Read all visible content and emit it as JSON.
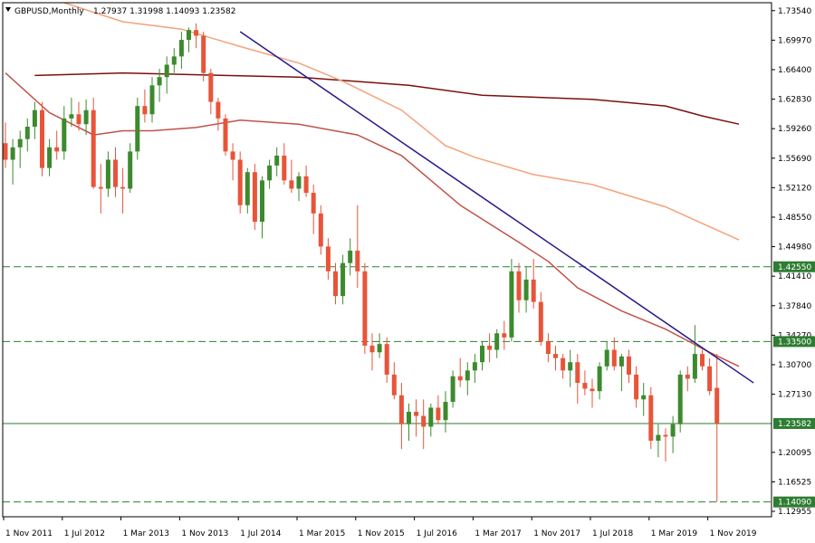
{
  "chart_data": {
    "type": "candlestick",
    "symbol_label": "GBPUSD,Monthly",
    "ohlc_readout": "1.27937 1.31998 1.14093 1.23582",
    "y_ticks": [
      1.7354,
      1.6997,
      1.664,
      1.6283,
      1.5926,
      1.5569,
      1.5212,
      1.4855,
      1.4498,
      1.4141,
      1.3784,
      1.3427,
      1.307,
      1.2713,
      1.20095,
      1.16525,
      1.12955
    ],
    "y_tick_labels": [
      "1.73540",
      "1.69970",
      "1.66400",
      "1.62830",
      "1.59260",
      "1.55690",
      "1.52120",
      "1.48550",
      "1.44980",
      "1.41410",
      "1.37840",
      "1.34270",
      "1.30700",
      "1.27130",
      "1.20095",
      "1.16525",
      "1.12955"
    ],
    "ylim": [
      1.123,
      1.745
    ],
    "x_labels": [
      {
        "index": 0,
        "label": "1 Nov 2011"
      },
      {
        "index": 8,
        "label": "1 Jul 2012"
      },
      {
        "index": 16,
        "label": "1 Mar 2013"
      },
      {
        "index": 24,
        "label": "1 Nov 2013"
      },
      {
        "index": 32,
        "label": "1 Jul 2014"
      },
      {
        "index": 40,
        "label": "1 Mar 2015"
      },
      {
        "index": 48,
        "label": "1 Nov 2015"
      },
      {
        "index": 56,
        "label": "1 Jul 2016"
      },
      {
        "index": 64,
        "label": "1 Mar 2017"
      },
      {
        "index": 72,
        "label": "1 Nov 2017"
      },
      {
        "index": 80,
        "label": "1 Jul 2018"
      },
      {
        "index": 88,
        "label": "1 Mar 2019"
      },
      {
        "index": 96,
        "label": "1 Nov 2019"
      }
    ],
    "horizontal_levels": [
      {
        "value": 1.4255,
        "label": "1.42550",
        "style": "dashed",
        "color": "#2e7d32"
      },
      {
        "value": 1.335,
        "label": "1.33500",
        "style": "dashed",
        "color": "#2e7d32"
      },
      {
        "value": 1.23582,
        "label": "1.23582",
        "style": "solid",
        "color": "#2e7d32"
      },
      {
        "value": 1.1409,
        "label": "1.14090",
        "style": "dashed",
        "color": "#2e7d32"
      }
    ],
    "trendline": {
      "from": {
        "index": 32,
        "value": 1.71
      },
      "to": {
        "index": 102,
        "value": 1.285
      },
      "color": "#2a1a8a"
    },
    "colors": {
      "bull": "#3c8a2e",
      "bear": "#e8543a",
      "ma_fast": "#c0524a",
      "ma_slow": "#f4a27a",
      "ma_long": "#7a1010",
      "current_price_box": "#2e7d32"
    },
    "ma_long": [
      [
        4,
        1.657
      ],
      [
        16,
        1.66
      ],
      [
        30,
        1.657
      ],
      [
        40,
        1.655
      ],
      [
        55,
        1.645
      ],
      [
        65,
        1.633
      ],
      [
        80,
        1.628
      ],
      [
        90,
        1.62
      ],
      [
        95,
        1.608
      ],
      [
        100,
        1.598
      ]
    ],
    "ma_slow": [
      [
        8,
        1.745
      ],
      [
        16,
        1.722
      ],
      [
        24,
        1.713
      ],
      [
        32,
        1.692
      ],
      [
        40,
        1.672
      ],
      [
        46,
        1.65
      ],
      [
        54,
        1.615
      ],
      [
        60,
        1.572
      ],
      [
        64,
        1.558
      ],
      [
        72,
        1.537
      ],
      [
        80,
        1.525
      ],
      [
        90,
        1.498
      ],
      [
        100,
        1.458
      ]
    ],
    "ma_fast": [
      [
        0,
        1.66
      ],
      [
        6,
        1.612
      ],
      [
        12,
        1.585
      ],
      [
        16,
        1.59
      ],
      [
        20,
        1.59
      ],
      [
        26,
        1.594
      ],
      [
        32,
        1.603
      ],
      [
        40,
        1.598
      ],
      [
        48,
        1.585
      ],
      [
        54,
        1.56
      ],
      [
        62,
        1.5
      ],
      [
        70,
        1.455
      ],
      [
        74,
        1.432
      ],
      [
        78,
        1.4
      ],
      [
        84,
        1.372
      ],
      [
        90,
        1.35
      ],
      [
        96,
        1.322
      ],
      [
        100,
        1.305
      ]
    ],
    "candles": [
      {
        "o": 1.575,
        "h": 1.6,
        "l": 1.545,
        "c": 1.555
      },
      {
        "o": 1.555,
        "h": 1.58,
        "l": 1.525,
        "c": 1.57
      },
      {
        "o": 1.57,
        "h": 1.59,
        "l": 1.545,
        "c": 1.58
      },
      {
        "o": 1.58,
        "h": 1.605,
        "l": 1.565,
        "c": 1.595
      },
      {
        "o": 1.595,
        "h": 1.625,
        "l": 1.58,
        "c": 1.615
      },
      {
        "o": 1.615,
        "h": 1.625,
        "l": 1.535,
        "c": 1.545
      },
      {
        "o": 1.545,
        "h": 1.58,
        "l": 1.535,
        "c": 1.57
      },
      {
        "o": 1.57,
        "h": 1.59,
        "l": 1.555,
        "c": 1.565
      },
      {
        "o": 1.565,
        "h": 1.62,
        "l": 1.555,
        "c": 1.605
      },
      {
        "o": 1.605,
        "h": 1.63,
        "l": 1.595,
        "c": 1.61
      },
      {
        "o": 1.61,
        "h": 1.625,
        "l": 1.59,
        "c": 1.598
      },
      {
        "o": 1.598,
        "h": 1.628,
        "l": 1.585,
        "c": 1.615
      },
      {
        "o": 1.615,
        "h": 1.63,
        "l": 1.52,
        "c": 1.522
      },
      {
        "o": 1.522,
        "h": 1.55,
        "l": 1.49,
        "c": 1.52
      },
      {
        "o": 1.52,
        "h": 1.565,
        "l": 1.51,
        "c": 1.555
      },
      {
        "o": 1.555,
        "h": 1.57,
        "l": 1.51,
        "c": 1.522
      },
      {
        "o": 1.522,
        "h": 1.545,
        "l": 1.49,
        "c": 1.52
      },
      {
        "o": 1.52,
        "h": 1.575,
        "l": 1.515,
        "c": 1.565
      },
      {
        "o": 1.565,
        "h": 1.63,
        "l": 1.555,
        "c": 1.62
      },
      {
        "o": 1.62,
        "h": 1.64,
        "l": 1.6,
        "c": 1.61
      },
      {
        "o": 1.61,
        "h": 1.655,
        "l": 1.6,
        "c": 1.645
      },
      {
        "o": 1.645,
        "h": 1.665,
        "l": 1.625,
        "c": 1.655
      },
      {
        "o": 1.655,
        "h": 1.68,
        "l": 1.635,
        "c": 1.67
      },
      {
        "o": 1.67,
        "h": 1.69,
        "l": 1.66,
        "c": 1.68
      },
      {
        "o": 1.68,
        "h": 1.71,
        "l": 1.665,
        "c": 1.7
      },
      {
        "o": 1.7,
        "h": 1.715,
        "l": 1.685,
        "c": 1.712
      },
      {
        "o": 1.712,
        "h": 1.72,
        "l": 1.69,
        "c": 1.705
      },
      {
        "o": 1.705,
        "h": 1.71,
        "l": 1.65,
        "c": 1.66
      },
      {
        "o": 1.66,
        "h": 1.665,
        "l": 1.61,
        "c": 1.625
      },
      {
        "o": 1.625,
        "h": 1.63,
        "l": 1.59,
        "c": 1.605
      },
      {
        "o": 1.605,
        "h": 1.61,
        "l": 1.56,
        "c": 1.565
      },
      {
        "o": 1.565,
        "h": 1.575,
        "l": 1.53,
        "c": 1.555
      },
      {
        "o": 1.555,
        "h": 1.565,
        "l": 1.49,
        "c": 1.5
      },
      {
        "o": 1.5,
        "h": 1.545,
        "l": 1.49,
        "c": 1.54
      },
      {
        "o": 1.54,
        "h": 1.55,
        "l": 1.47,
        "c": 1.48
      },
      {
        "o": 1.48,
        "h": 1.535,
        "l": 1.46,
        "c": 1.53
      },
      {
        "o": 1.53,
        "h": 1.555,
        "l": 1.52,
        "c": 1.548
      },
      {
        "o": 1.548,
        "h": 1.57,
        "l": 1.535,
        "c": 1.56
      },
      {
        "o": 1.56,
        "h": 1.575,
        "l": 1.525,
        "c": 1.53
      },
      {
        "o": 1.53,
        "h": 1.555,
        "l": 1.515,
        "c": 1.52
      },
      {
        "o": 1.52,
        "h": 1.54,
        "l": 1.505,
        "c": 1.535
      },
      {
        "o": 1.535,
        "h": 1.548,
        "l": 1.51,
        "c": 1.515
      },
      {
        "o": 1.515,
        "h": 1.525,
        "l": 1.465,
        "c": 1.49
      },
      {
        "o": 1.49,
        "h": 1.5,
        "l": 1.44,
        "c": 1.45
      },
      {
        "o": 1.45,
        "h": 1.46,
        "l": 1.41,
        "c": 1.42
      },
      {
        "o": 1.42,
        "h": 1.43,
        "l": 1.38,
        "c": 1.39
      },
      {
        "o": 1.39,
        "h": 1.44,
        "l": 1.38,
        "c": 1.43
      },
      {
        "o": 1.43,
        "h": 1.46,
        "l": 1.415,
        "c": 1.445
      },
      {
        "o": 1.445,
        "h": 1.5,
        "l": 1.4,
        "c": 1.42
      },
      {
        "o": 1.42,
        "h": 1.43,
        "l": 1.32,
        "c": 1.33
      },
      {
        "o": 1.33,
        "h": 1.345,
        "l": 1.3,
        "c": 1.322
      },
      {
        "o": 1.322,
        "h": 1.345,
        "l": 1.315,
        "c": 1.332
      },
      {
        "o": 1.332,
        "h": 1.34,
        "l": 1.285,
        "c": 1.295
      },
      {
        "o": 1.295,
        "h": 1.31,
        "l": 1.265,
        "c": 1.27
      },
      {
        "o": 1.27,
        "h": 1.285,
        "l": 1.205,
        "c": 1.235
      },
      {
        "o": 1.235,
        "h": 1.26,
        "l": 1.215,
        "c": 1.25
      },
      {
        "o": 1.25,
        "h": 1.265,
        "l": 1.22,
        "c": 1.245
      },
      {
        "o": 1.245,
        "h": 1.265,
        "l": 1.205,
        "c": 1.232
      },
      {
        "o": 1.232,
        "h": 1.26,
        "l": 1.22,
        "c": 1.255
      },
      {
        "o": 1.255,
        "h": 1.27,
        "l": 1.235,
        "c": 1.24
      },
      {
        "o": 1.24,
        "h": 1.275,
        "l": 1.225,
        "c": 1.262
      },
      {
        "o": 1.262,
        "h": 1.3,
        "l": 1.255,
        "c": 1.293
      },
      {
        "o": 1.293,
        "h": 1.315,
        "l": 1.28,
        "c": 1.288
      },
      {
        "o": 1.288,
        "h": 1.31,
        "l": 1.27,
        "c": 1.3
      },
      {
        "o": 1.3,
        "h": 1.32,
        "l": 1.285,
        "c": 1.31
      },
      {
        "o": 1.31,
        "h": 1.335,
        "l": 1.3,
        "c": 1.33
      },
      {
        "o": 1.33,
        "h": 1.345,
        "l": 1.31,
        "c": 1.325
      },
      {
        "o": 1.325,
        "h": 1.35,
        "l": 1.315,
        "c": 1.345
      },
      {
        "o": 1.345,
        "h": 1.36,
        "l": 1.325,
        "c": 1.34
      },
      {
        "o": 1.34,
        "h": 1.435,
        "l": 1.335,
        "c": 1.42
      },
      {
        "o": 1.42,
        "h": 1.43,
        "l": 1.37,
        "c": 1.385
      },
      {
        "o": 1.385,
        "h": 1.425,
        "l": 1.37,
        "c": 1.41
      },
      {
        "o": 1.41,
        "h": 1.435,
        "l": 1.375,
        "c": 1.383
      },
      {
        "o": 1.383,
        "h": 1.395,
        "l": 1.33,
        "c": 1.335
      },
      {
        "o": 1.335,
        "h": 1.345,
        "l": 1.31,
        "c": 1.32
      },
      {
        "o": 1.32,
        "h": 1.33,
        "l": 1.3,
        "c": 1.315
      },
      {
        "o": 1.315,
        "h": 1.32,
        "l": 1.29,
        "c": 1.3
      },
      {
        "o": 1.3,
        "h": 1.325,
        "l": 1.28,
        "c": 1.31
      },
      {
        "o": 1.31,
        "h": 1.32,
        "l": 1.26,
        "c": 1.285
      },
      {
        "o": 1.285,
        "h": 1.3,
        "l": 1.27,
        "c": 1.278
      },
      {
        "o": 1.278,
        "h": 1.29,
        "l": 1.255,
        "c": 1.275
      },
      {
        "o": 1.275,
        "h": 1.31,
        "l": 1.265,
        "c": 1.305
      },
      {
        "o": 1.305,
        "h": 1.335,
        "l": 1.3,
        "c": 1.325
      },
      {
        "o": 1.325,
        "h": 1.34,
        "l": 1.3,
        "c": 1.305
      },
      {
        "o": 1.305,
        "h": 1.32,
        "l": 1.275,
        "c": 1.317
      },
      {
        "o": 1.317,
        "h": 1.325,
        "l": 1.285,
        "c": 1.295
      },
      {
        "o": 1.295,
        "h": 1.305,
        "l": 1.255,
        "c": 1.265
      },
      {
        "o": 1.265,
        "h": 1.285,
        "l": 1.245,
        "c": 1.27
      },
      {
        "o": 1.27,
        "h": 1.28,
        "l": 1.205,
        "c": 1.215
      },
      {
        "o": 1.215,
        "h": 1.235,
        "l": 1.195,
        "c": 1.222
      },
      {
        "o": 1.222,
        "h": 1.23,
        "l": 1.19,
        "c": 1.22
      },
      {
        "o": 1.22,
        "h": 1.245,
        "l": 1.2,
        "c": 1.235
      },
      {
        "o": 1.235,
        "h": 1.3,
        "l": 1.225,
        "c": 1.295
      },
      {
        "o": 1.295,
        "h": 1.305,
        "l": 1.275,
        "c": 1.29
      },
      {
        "o": 1.29,
        "h": 1.355,
        "l": 1.285,
        "c": 1.32
      },
      {
        "o": 1.32,
        "h": 1.325,
        "l": 1.3,
        "c": 1.305
      },
      {
        "o": 1.305,
        "h": 1.315,
        "l": 1.27,
        "c": 1.275
      },
      {
        "o": 1.279,
        "h": 1.32,
        "l": 1.141,
        "c": 1.236
      }
    ]
  }
}
